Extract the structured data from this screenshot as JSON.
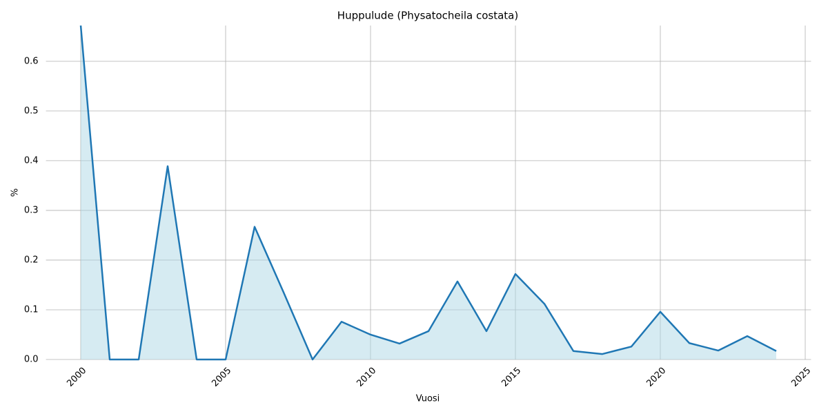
{
  "chart_data": {
    "type": "area",
    "title": "Huppulude (Physatocheila costata)",
    "x_label": "Vuosi",
    "y_label": "%",
    "x": [
      2000,
      2001,
      2002,
      2003,
      2004,
      2005,
      2006,
      2007,
      2008,
      2009,
      2010,
      2011,
      2012,
      2013,
      2014,
      2015,
      2016,
      2017,
      2018,
      2019,
      2020,
      2021,
      2022,
      2023,
      2024
    ],
    "series": [
      {
        "name": "%",
        "color": "#1f77b4",
        "fill": "#add8e6",
        "values": [
          0.672,
          0,
          0,
          0.389,
          0,
          0,
          0.267,
          0.135,
          0,
          0.076,
          0.05,
          0.032,
          0.057,
          0.157,
          0.057,
          0.172,
          0.112,
          0.017,
          0.011,
          0.026,
          0.096,
          0.033,
          0.018,
          0.047,
          0.017
        ]
      }
    ],
    "xlim": [
      1998.8,
      2025.2
    ],
    "xticks": [
      2000,
      2005,
      2010,
      2015,
      2020,
      2025
    ],
    "ylim": [
      0,
      0.672
    ],
    "yticks": [
      {
        "value": 0,
        "label": "0.0"
      },
      0.1,
      0.2,
      0.3,
      0.4,
      0.5,
      0.6
    ],
    "grid": true
  }
}
